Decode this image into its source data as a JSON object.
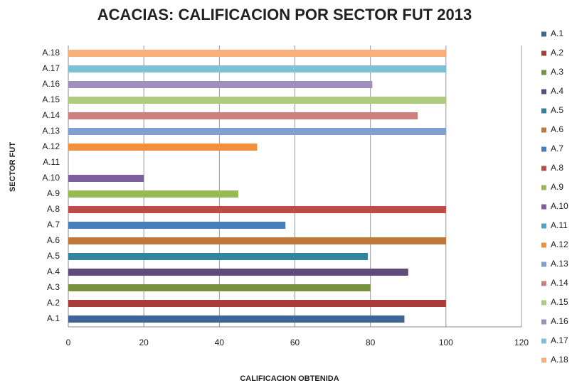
{
  "chart_data": {
    "type": "bar",
    "orientation": "horizontal",
    "title": "ACACIAS: CALIFICACION POR SECTOR FUT 2013",
    "x_label": "CALIFICACION OBTENIDA",
    "y_label": "SECTOR  FUT",
    "categories": [
      "A.1",
      "A.2",
      "A.3",
      "A.4",
      "A.5",
      "A.6",
      "A.7",
      "A.8",
      "A.9",
      "A.10",
      "A.11",
      "A.12",
      "A.13",
      "A.14",
      "A.15",
      "A.16",
      "A.17",
      "A.18"
    ],
    "values": [
      89,
      100,
      80,
      90,
      79.3,
      100,
      57.5,
      100,
      45,
      20,
      0,
      50,
      100,
      92.5,
      100,
      80.5,
      100,
      100
    ],
    "colors": [
      "#3f6497",
      "#a83c39",
      "#76923c",
      "#60497b",
      "#31849b",
      "#c0773a",
      "#4a7ebb",
      "#be4b48",
      "#98b954",
      "#7d5fa0",
      "#46aac5",
      "#f38f3a",
      "#7f9fce",
      "#cc7f7d",
      "#afcb7f",
      "#a18fbe",
      "#7ec1d6",
      "#f9af7a"
    ],
    "xlim": [
      0,
      120
    ],
    "xticks": [
      0,
      20,
      40,
      60,
      80,
      100,
      120
    ],
    "grid": true,
    "legend": "right"
  }
}
